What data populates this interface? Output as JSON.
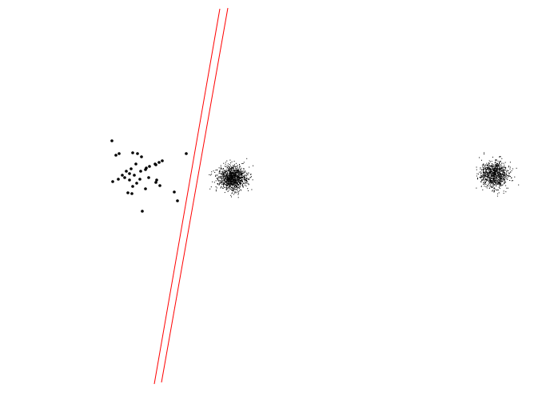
{
  "diagram": {
    "background_color": "#ffffff",
    "point_color": "#000000",
    "line_color": "#ff0000",
    "groups": [
      {
        "name": "sparse-cluster-left",
        "point_count": 38
      },
      {
        "name": "dense-cluster-center",
        "point_count": 1100
      },
      {
        "name": "dense-cluster-right",
        "point_count": 900
      }
    ],
    "lines": [
      {
        "name": "separator-line-1"
      },
      {
        "name": "separator-line-2"
      }
    ]
  }
}
